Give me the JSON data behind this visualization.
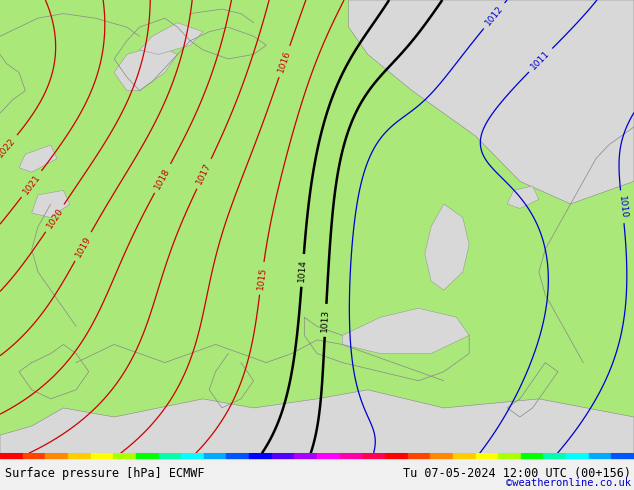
{
  "title_left": "Surface pressure [hPa] ECMWF",
  "title_right": "Tu 07-05-2024 12:00 UTC (00+156)",
  "credit": "©weatheronline.co.uk",
  "land_color": "#aae87a",
  "sea_color": "#d8d8d8",
  "bottom_bg": "#f0f0f0",
  "fig_bg": "#c0c0c0",
  "red": "#cc0000",
  "blue": "#0000cc",
  "black": "#000000",
  "gray_coast": "#888888",
  "label_fs": 6.5,
  "title_fs": 8.5,
  "credit_fs": 7.5,
  "figsize": [
    6.34,
    4.9
  ],
  "dpi": 100,
  "rainbow": [
    "#ff0000",
    "#ff4400",
    "#ff8800",
    "#ffcc00",
    "#ffff00",
    "#aaff00",
    "#00ff00",
    "#00ffaa",
    "#00ffff",
    "#00aaff",
    "#0055ff",
    "#0000ff",
    "#5500ff",
    "#aa00ff",
    "#ff00ff",
    "#ff00aa",
    "#ff0055",
    "#ff0000",
    "#ff4400",
    "#ff8800",
    "#ffcc00",
    "#ffff00",
    "#aaff00",
    "#00ff00",
    "#00ffaa",
    "#00ffff",
    "#00aaff",
    "#0055ff"
  ]
}
